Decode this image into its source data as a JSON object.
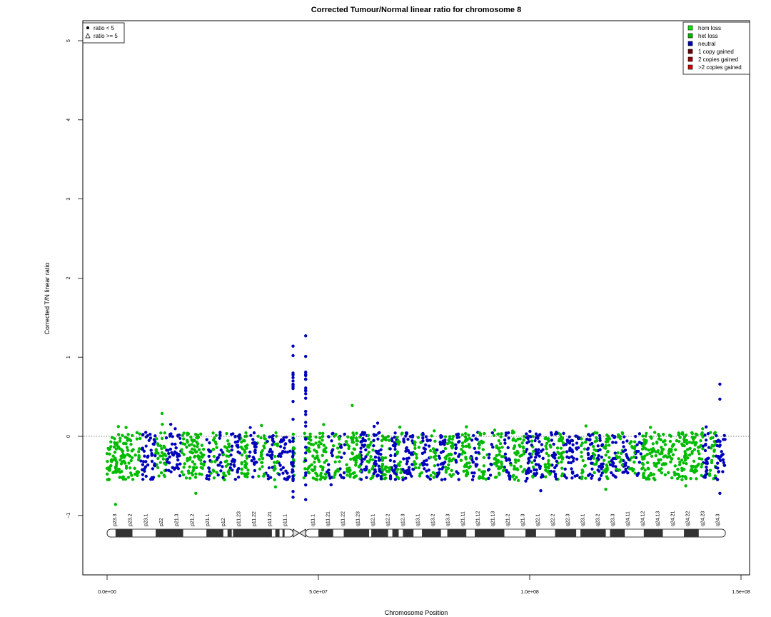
{
  "chart_data": {
    "type": "scatter",
    "title": "Corrected Tumour/Normal linear ratio for chromosome  8",
    "xlabel": "Chromosome Position",
    "ylabel": "Corrected T/N linear ratio",
    "xlim": [
      0,
      150000000
    ],
    "ylim": [
      -1.75,
      5.3
    ],
    "x_ticks": [
      0,
      50000000,
      100000000,
      150000000
    ],
    "x_tick_labels": [
      "0.0e+00",
      "5.0e+07",
      "1.0e+08",
      "1.5e+08"
    ],
    "y_ticks": [
      -1,
      0,
      1,
      2,
      3,
      4,
      5
    ],
    "y_tick_labels": [
      "−1",
      "0",
      "1",
      "2",
      "3",
      "4",
      "5"
    ],
    "reference_line": 0,
    "centromere": [
      44000000,
      47000000
    ],
    "data_range": [
      0,
      146300000
    ],
    "point_band": [
      -0.55,
      0.05
    ],
    "extreme_points": [
      {
        "x": 44000000,
        "y": 1.14,
        "series": "neutral"
      },
      {
        "x": 44000000,
        "y": 1.02,
        "series": "neutral"
      },
      {
        "x": 44000000,
        "y": 0.8,
        "series": "neutral"
      },
      {
        "x": 44000000,
        "y": 0.7,
        "series": "neutral"
      },
      {
        "x": 44000000,
        "y": -0.77,
        "series": "neutral"
      },
      {
        "x": 47000000,
        "y": 1.27,
        "series": "neutral"
      },
      {
        "x": 47000000,
        "y": 1.01,
        "series": "neutral"
      },
      {
        "x": 47000000,
        "y": 0.78,
        "series": "neutral"
      },
      {
        "x": 47000000,
        "y": 0.72,
        "series": "neutral"
      },
      {
        "x": 47000000,
        "y": -0.8,
        "series": "neutral"
      },
      {
        "x": 145000000,
        "y": 0.66,
        "series": "neutral"
      },
      {
        "x": 145000000,
        "y": 0.47,
        "series": "neutral"
      },
      {
        "x": 145000000,
        "y": -0.72,
        "series": "neutral"
      },
      {
        "x": 2000000,
        "y": -0.86,
        "series": "het loss"
      },
      {
        "x": 21000000,
        "y": -0.72,
        "series": "het loss"
      },
      {
        "x": 118000000,
        "y": -0.67,
        "series": "het loss"
      },
      {
        "x": 13000000,
        "y": 0.29,
        "series": "het loss"
      },
      {
        "x": 58000000,
        "y": 0.39,
        "series": "het loss"
      }
    ],
    "series": [
      {
        "name": "hom loss",
        "color": "#00ee00"
      },
      {
        "name": "het loss",
        "color": "#00bb00"
      },
      {
        "name": "neutral",
        "color": "#0000bb"
      },
      {
        "name": "1 copy gained",
        "color": "#660000"
      },
      {
        "name": "2 copies gained",
        "color": "#990000"
      },
      {
        "name": ">2 copies gained",
        "color": "#dd0000"
      }
    ],
    "legend_position": "top-right",
    "shape_legend": [
      "ratio < 5",
      "ratio >= 5"
    ],
    "shape_legend_position": "top-left",
    "cytobands": [
      "p23.3",
      "p23.2",
      "p23.1",
      "p22",
      "p21.3",
      "p21.2",
      "p21.1",
      "p12",
      "p11.23",
      "p11.22",
      "p11.21",
      "p11.1",
      "q11.1",
      "q11.21",
      "q11.22",
      "q11.23",
      "q12.1",
      "q12.2",
      "q12.3",
      "q13.1",
      "q13.2",
      "q13.3",
      "q21.11",
      "q21.12",
      "q21.13",
      "q21.2",
      "q21.3",
      "q22.1",
      "q22.2",
      "q22.3",
      "q23.1",
      "q23.2",
      "q23.3",
      "q24.11",
      "q24.12",
      "q24.13",
      "q24.21",
      "q24.22",
      "q24.23",
      "q24.3"
    ],
    "neutral_segments": [
      [
        8000000,
        11500000
      ],
      [
        14000000,
        17500000
      ],
      [
        23000000,
        24500000
      ],
      [
        26000000,
        27500000
      ],
      [
        29000000,
        31500000
      ],
      [
        33500000,
        35500000
      ],
      [
        37500000,
        39500000
      ],
      [
        40500000,
        44000000
      ],
      [
        52000000,
        53500000
      ],
      [
        55000000,
        56500000
      ],
      [
        60000000,
        61500000
      ],
      [
        63000000,
        65000000
      ],
      [
        67000000,
        68500000
      ],
      [
        70000000,
        72500000
      ],
      [
        74500000,
        76500000
      ],
      [
        78000000,
        80000000
      ],
      [
        82000000,
        83500000
      ],
      [
        86000000,
        88000000
      ],
      [
        90000000,
        91500000
      ],
      [
        94000000,
        95500000
      ],
      [
        99000000,
        100500000
      ],
      [
        101000000,
        103500000
      ],
      [
        105000000,
        106500000
      ],
      [
        108000000,
        112000000
      ],
      [
        113500000,
        115000000
      ],
      [
        116000000,
        117500000
      ],
      [
        119000000,
        120500000
      ],
      [
        122000000,
        123500000
      ],
      [
        125000000,
        126500000
      ],
      [
        141000000,
        142500000
      ],
      [
        144000000,
        146300000
      ]
    ]
  }
}
